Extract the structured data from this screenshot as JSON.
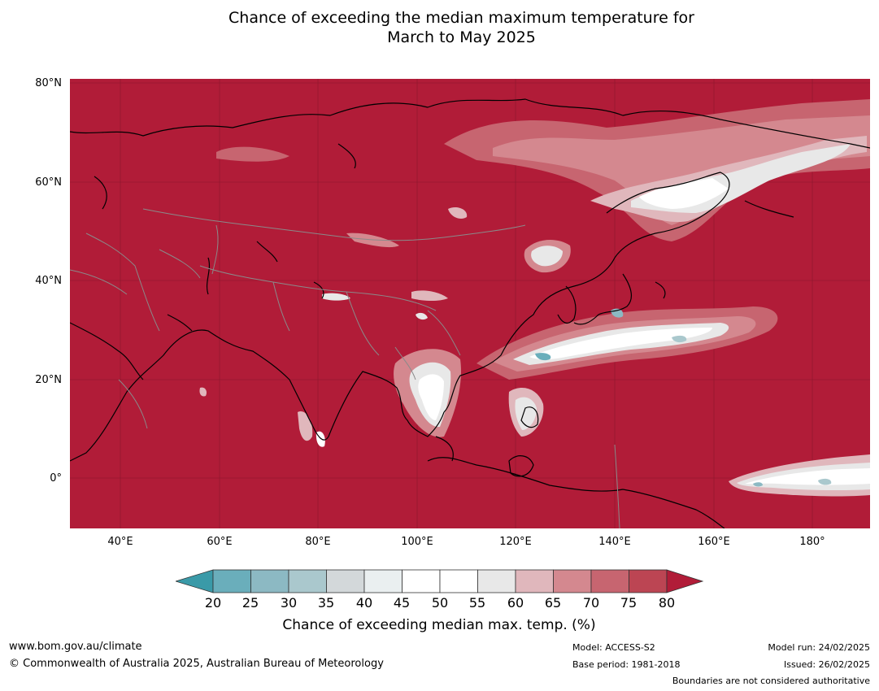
{
  "title": {
    "line1": "Chance of exceeding the median maximum temperature for",
    "line2": "March to May 2025"
  },
  "map": {
    "lat_labels": [
      "80°N",
      "60°N",
      "40°N",
      "20°N",
      "0°"
    ],
    "lon_labels": [
      "40°E",
      "60°E",
      "80°E",
      "100°E",
      "120°E",
      "140°E",
      "160°E",
      "180°"
    ],
    "extent": {
      "lon": [
        30,
        192
      ],
      "lat": [
        -10,
        81
      ]
    },
    "colors": {
      "above_80": "#b11c38",
      "ocean_lines": "#5a0f1c",
      "coast": "#000000",
      "borders": "#8a8a8a"
    }
  },
  "colorbar": {
    "ticks": [
      "20",
      "25",
      "30",
      "35",
      "40",
      "45",
      "50",
      "55",
      "60",
      "65",
      "70",
      "75",
      "80"
    ],
    "colors": [
      "#3a9aa8",
      "#6aaebb",
      "#8cb9c3",
      "#aac8cd",
      "#d3d8da",
      "#eaeff0",
      "#ffffff",
      "#ffffff",
      "#e8e8e8",
      "#e0b7bc",
      "#d4888f",
      "#c76570",
      "#bc4553",
      "#b11c38"
    ],
    "label": "Chance of exceeding median max. temp. (%)"
  },
  "footer": {
    "website": "www.bom.gov.au/climate",
    "copyright": "© Commonwealth of Australia 2025, Australian Bureau of Meteorology",
    "model": "Model: ACCESS-S2",
    "base_period": "Base period: 1981-2018",
    "model_run": "Model run: 24/02/2025",
    "issued": "Issued: 26/02/2025",
    "disclaimer": "Boundaries are not considered authoritative"
  }
}
